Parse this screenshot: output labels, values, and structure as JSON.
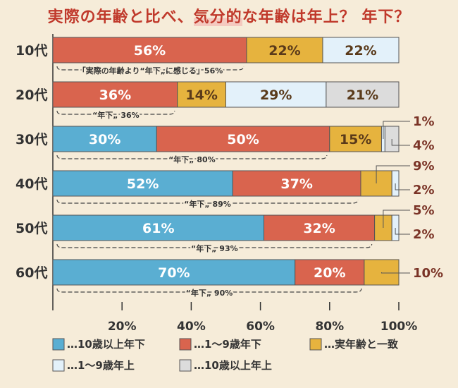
{
  "title": {
    "prefix": "実際の年齢と比べ、",
    "highlight": "気分的",
    "suffix": "な年齢は年上？ 年下？"
  },
  "chart_data": {
    "type": "bar",
    "orientation": "horizontal",
    "stacked": true,
    "categories": [
      "10代",
      "20代",
      "30代",
      "40代",
      "50代",
      "60代"
    ],
    "series": [
      {
        "name": "10歳以上年下",
        "color": "#5aaed2",
        "values": [
          0,
          0,
          30,
          52,
          61,
          70
        ]
      },
      {
        "name": "1〜9歳年下",
        "color": "#d9644e",
        "values": [
          56,
          36,
          50,
          37,
          32,
          20
        ]
      },
      {
        "name": "実年齢と一致",
        "color": "#e6b33e",
        "values": [
          22,
          14,
          15,
          9,
          5,
          10
        ]
      },
      {
        "name": "1〜9歳年上",
        "color": "#e3f1fa",
        "values": [
          22,
          29,
          1,
          2,
          2,
          0
        ]
      },
      {
        "name": "10歳以上年上",
        "color": "#dcdcdc",
        "values": [
          0,
          21,
          4,
          0,
          0,
          0
        ]
      }
    ],
    "bar_labels": [
      [
        "",
        "56%",
        "22%",
        "22%",
        ""
      ],
      [
        "",
        "36%",
        "14%",
        "29%",
        "21%"
      ],
      [
        "30%",
        "50%",
        "15%",
        "1%",
        "4%"
      ],
      [
        "52%",
        "37%",
        "9%",
        "2%",
        ""
      ],
      [
        "61%",
        "32%",
        "5%",
        "2%",
        ""
      ],
      [
        "70%",
        "20%",
        "10%",
        "",
        ""
      ]
    ],
    "annotations": [
      "「実際の年齢より“年下„に感じる」56%",
      "“年下„ 36%",
      "“年下„ 80%",
      "“年下„ 89%",
      "“年下„ 93%",
      "“年下„ 90%"
    ],
    "x_ticks": [
      "20%",
      "40%",
      "60%",
      "80%",
      "100%"
    ],
    "x_tick_values": [
      20,
      40,
      60,
      80,
      100
    ],
    "xlim": [
      0,
      100
    ],
    "legend_prefix": "…",
    "legend_position": "bottom"
  }
}
